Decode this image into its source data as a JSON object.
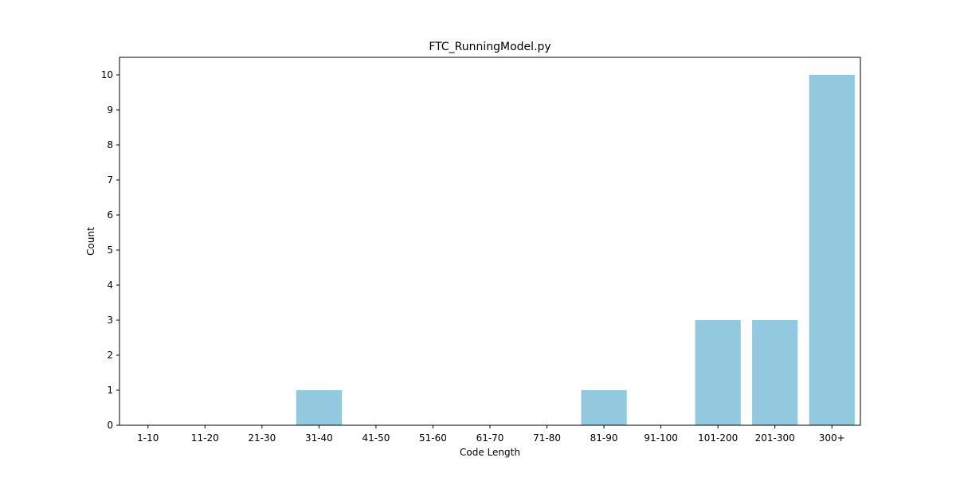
{
  "chart_data": {
    "type": "bar",
    "title": "FTC_RunningModel.py",
    "xlabel": "Code Length",
    "ylabel": "Count",
    "categories": [
      "1-10",
      "11-20",
      "21-30",
      "31-40",
      "41-50",
      "51-60",
      "61-70",
      "71-80",
      "81-90",
      "91-100",
      "101-200",
      "201-300",
      "300+"
    ],
    "values": [
      0,
      0,
      0,
      1,
      0,
      0,
      0,
      0,
      1,
      0,
      3,
      3,
      10
    ],
    "ylim": [
      0,
      10.5
    ],
    "yticks": [
      0,
      1,
      2,
      3,
      4,
      5,
      6,
      7,
      8,
      9,
      10
    ],
    "bar_color": "#92c9de",
    "grid": false,
    "legend": "none"
  }
}
